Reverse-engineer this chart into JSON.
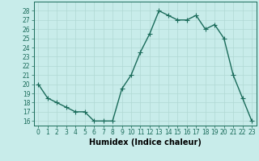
{
  "x": [
    0,
    1,
    2,
    3,
    4,
    5,
    6,
    7,
    8,
    9,
    10,
    11,
    12,
    13,
    14,
    15,
    16,
    17,
    18,
    19,
    20,
    21,
    22,
    23
  ],
  "y": [
    20,
    18.5,
    18,
    17.5,
    17,
    17,
    16,
    16,
    16,
    19.5,
    21,
    23.5,
    25.5,
    28,
    27.5,
    27,
    27,
    27.5,
    26,
    26.5,
    25,
    21,
    18.5,
    16
  ],
  "line_color": "#1a6b5a",
  "marker": "+",
  "marker_size": 4,
  "bg_color": "#c8ecea",
  "grid_color": "#b0d8d4",
  "xlabel": "Humidex (Indice chaleur)",
  "xlim": [
    -0.5,
    23.5
  ],
  "ylim": [
    15.5,
    29
  ],
  "yticks": [
    16,
    17,
    18,
    19,
    20,
    21,
    22,
    23,
    24,
    25,
    26,
    27,
    28
  ],
  "xticks": [
    0,
    1,
    2,
    3,
    4,
    5,
    6,
    7,
    8,
    9,
    10,
    11,
    12,
    13,
    14,
    15,
    16,
    17,
    18,
    19,
    20,
    21,
    22,
    23
  ],
  "xtick_labels": [
    "0",
    "1",
    "2",
    "3",
    "4",
    "5",
    "6",
    "7",
    "8",
    "9",
    "10",
    "11",
    "12",
    "13",
    "14",
    "15",
    "16",
    "17",
    "18",
    "19",
    "20",
    "21",
    "22",
    "23"
  ],
  "tick_fontsize": 5.5,
  "label_fontsize": 7,
  "linewidth": 1.0,
  "markeredgewidth": 0.8
}
